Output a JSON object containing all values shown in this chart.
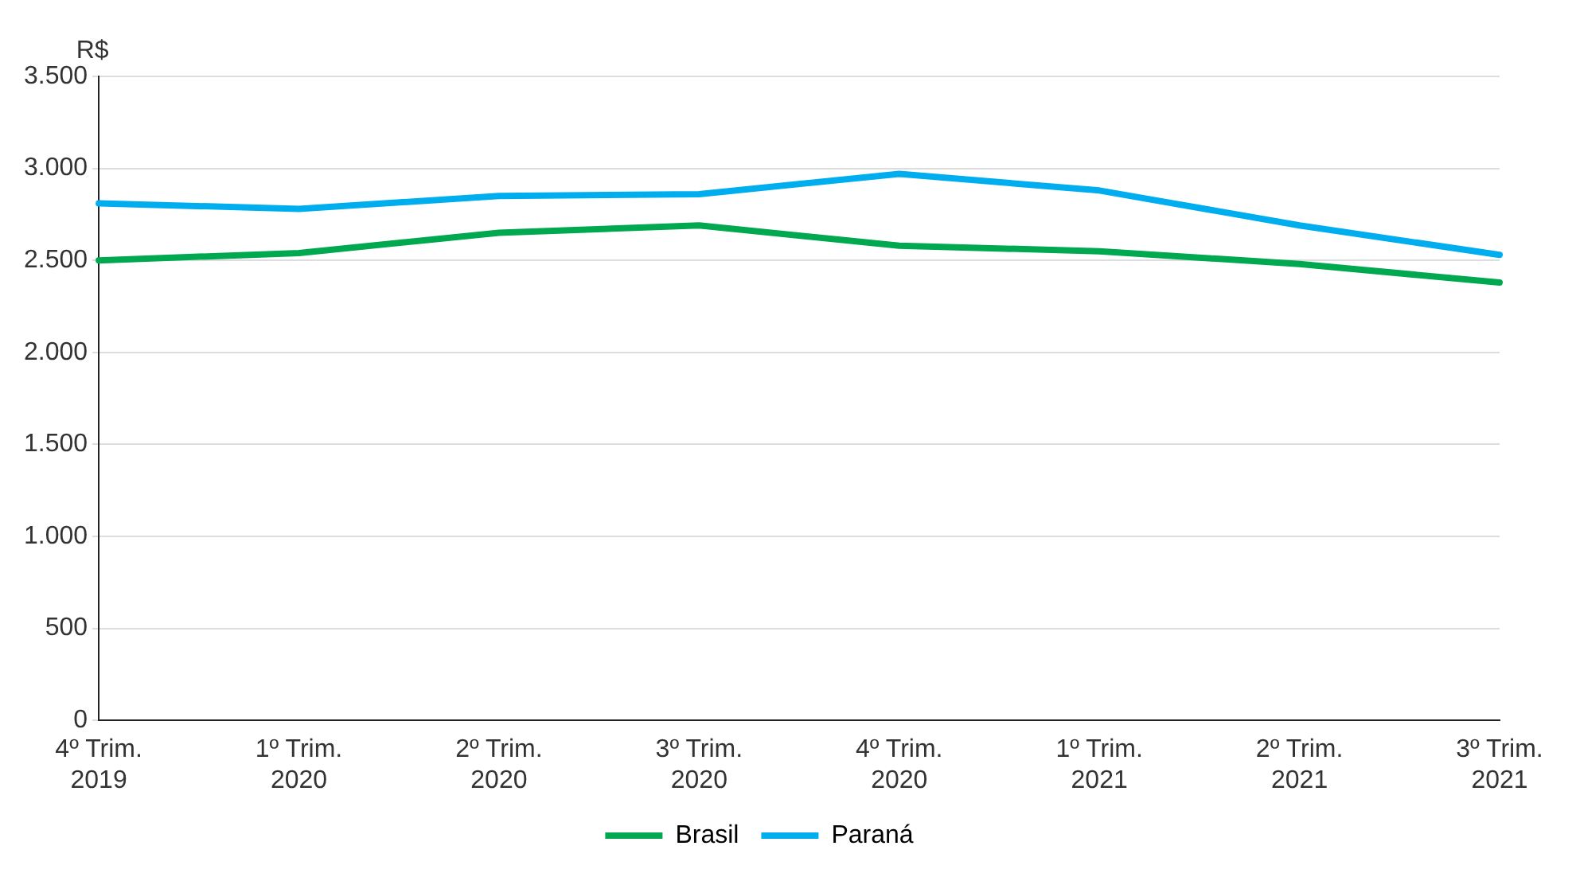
{
  "chart_data": {
    "type": "line",
    "ylabel": "R$",
    "categories": [
      "4º Trim. 2019",
      "1º Trim. 2020",
      "2º Trim. 2020",
      "3º Trim. 2020",
      "4º Trim. 2020",
      "1º Trim. 2021",
      "2º Trim. 2021",
      "3º Trim. 2021"
    ],
    "series": [
      {
        "name": "Brasil",
        "color": "#00a84f",
        "values": [
          2500,
          2540,
          2650,
          2690,
          2580,
          2550,
          2480,
          2380
        ]
      },
      {
        "name": "Paraná",
        "color": "#00aeef",
        "values": [
          2810,
          2780,
          2850,
          2860,
          2970,
          2880,
          2690,
          2530
        ]
      }
    ],
    "ylim": [
      0,
      3500
    ],
    "yticks": [
      {
        "value": 0,
        "label": "0"
      },
      {
        "value": 500,
        "label": "500"
      },
      {
        "value": 1000,
        "label": "1.000"
      },
      {
        "value": 1500,
        "label": "1.500"
      },
      {
        "value": 2000,
        "label": "2.000"
      },
      {
        "value": 2500,
        "label": "2.500"
      },
      {
        "value": 3000,
        "label": "3.000"
      },
      {
        "value": 3500,
        "label": "3.500"
      }
    ],
    "grid": "y",
    "legend": "bottom",
    "marker": "none",
    "line_style": "solid"
  }
}
